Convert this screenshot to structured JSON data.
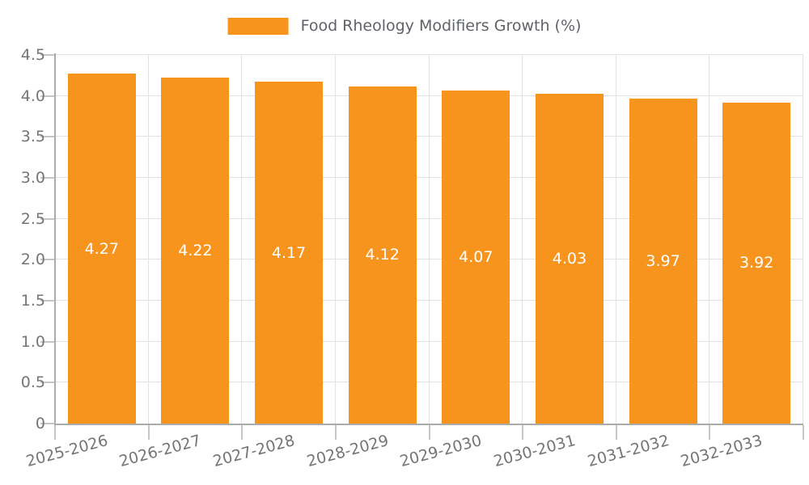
{
  "legend": {
    "swatch_color": "#f7941d"
  },
  "chart_data": {
    "type": "bar",
    "title": "Food Rheology Modifiers Growth (%)",
    "categories": [
      "2025-2026",
      "2026-2027",
      "2027-2028",
      "2028-2029",
      "2029-2030",
      "2030-2031",
      "2031-2032",
      "2032-2033"
    ],
    "values": [
      4.27,
      4.22,
      4.17,
      4.12,
      4.07,
      4.03,
      3.97,
      3.92
    ],
    "value_labels": [
      "4.27",
      "4.22",
      "4.17",
      "4.12",
      "4.07",
      "4.03",
      "3.97",
      "3.92"
    ],
    "xlabel": "",
    "ylabel": "",
    "ylim": [
      0,
      4.5
    ],
    "ytick_labels": [
      "0",
      "0.5",
      "1.0",
      "1.5",
      "2.0",
      "2.5",
      "3.0",
      "3.5",
      "4.0",
      "4.5"
    ],
    "grid": true,
    "legend_position": "top-center",
    "bar_color": "#f7941d",
    "bar_label_color": "#ffffff",
    "grid_color": "#e2e2e2",
    "axis_color": "#ababab",
    "tick_color": "#c6c6c6",
    "tick_label_color": "#757575",
    "title_color": "#5f6368",
    "background_color": "#ffffff"
  }
}
